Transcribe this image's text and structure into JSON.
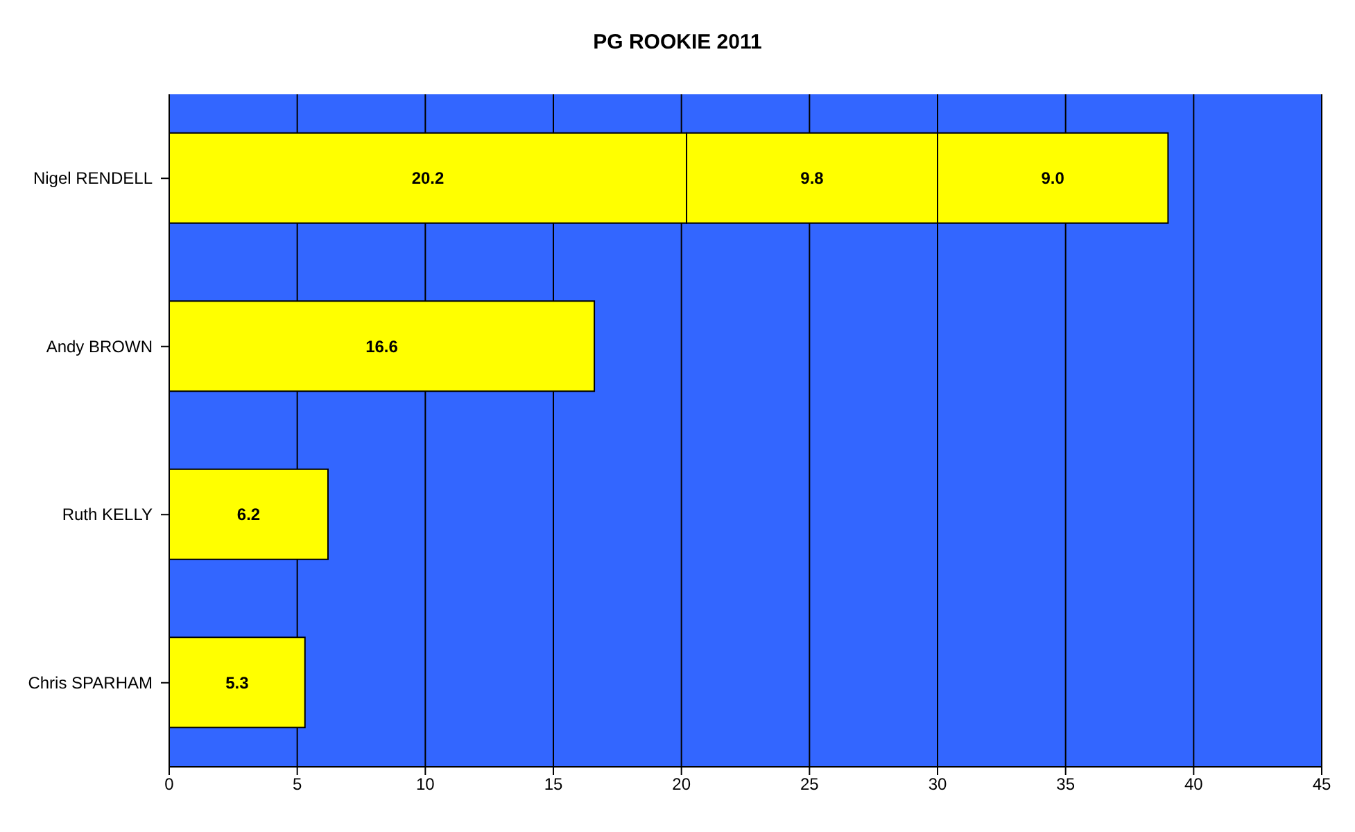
{
  "chart_data": {
    "type": "bar",
    "title": "PG ROOKIE 2011",
    "orientation": "horizontal",
    "stacked": true,
    "categories": [
      "Nigel RENDELL",
      "Andy BROWN",
      "Ruth KELLY",
      "Chris SPARHAM"
    ],
    "series": [
      {
        "color": "#ffff00",
        "values": [
          20.2,
          16.6,
          6.2,
          5.3
        ],
        "value_labels": [
          "20.2",
          "16.6",
          "6.2",
          "5.3"
        ]
      },
      {
        "color": "#ffff00",
        "values": [
          9.8,
          null,
          null,
          null
        ],
        "value_labels": [
          "9.8",
          null,
          null,
          null
        ]
      },
      {
        "color": "#ffff00",
        "values": [
          9.0,
          null,
          null,
          null
        ],
        "value_labels": [
          "9.0",
          null,
          null,
          null
        ]
      }
    ],
    "xlim": [
      0,
      45
    ],
    "xticks": [
      0,
      5,
      10,
      15,
      20,
      25,
      30,
      35,
      40,
      45
    ],
    "grid": "x",
    "legend": false
  }
}
